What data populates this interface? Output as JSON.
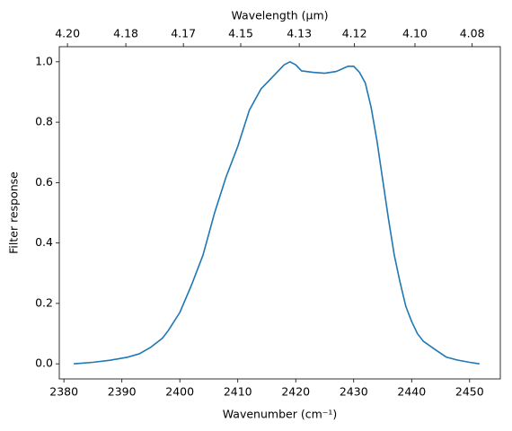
{
  "chart_data": {
    "type": "line",
    "x_label": "Wavenumber (cm⁻¹)",
    "y_label": "Filter response",
    "x2_label": "Wavelength (μm)",
    "x": [
      2381.7,
      2385,
      2388,
      2391,
      2393,
      2395,
      2397,
      2398,
      2400,
      2402,
      2404,
      2406,
      2408,
      2410,
      2412,
      2414,
      2416,
      2418,
      2419,
      2420,
      2421,
      2423,
      2425,
      2427,
      2429,
      2430,
      2431,
      2432,
      2433,
      2434,
      2435,
      2436,
      2437,
      2438,
      2439,
      2440,
      2441,
      2442,
      2444,
      2445,
      2446,
      2448,
      2450,
      2451.7
    ],
    "series": [
      {
        "color": "#1f77b4",
        "values": [
          0.0,
          0.005,
          0.012,
          0.022,
          0.033,
          0.055,
          0.085,
          0.11,
          0.17,
          0.26,
          0.36,
          0.5,
          0.62,
          0.72,
          0.84,
          0.91,
          0.95,
          0.99,
          1.0,
          0.99,
          0.97,
          0.965,
          0.962,
          0.968,
          0.985,
          0.985,
          0.965,
          0.93,
          0.85,
          0.74,
          0.61,
          0.48,
          0.36,
          0.27,
          0.19,
          0.14,
          0.1,
          0.075,
          0.048,
          0.035,
          0.022,
          0.012,
          0.005,
          0.0
        ]
      }
    ],
    "xlim": [
      2379.2,
      2455.3
    ],
    "ylim": [
      -0.05,
      1.05
    ],
    "xticks": [
      2380,
      2390,
      2400,
      2410,
      2420,
      2430,
      2440,
      2450
    ],
    "yticks": [
      {
        "value": 0.0,
        "label": "0.0"
      },
      0.2,
      0.4,
      0.6,
      0.8,
      {
        "value": 1.0,
        "label": "1.0"
      }
    ],
    "x2ticks": [
      {
        "value": 4.2006,
        "label": "4.20"
      },
      {
        "value": 4.1829,
        "label": "4.18"
      },
      {
        "value": 4.1656,
        "label": "4.17"
      },
      {
        "value": 4.1485,
        "label": "4.15"
      },
      {
        "value": 4.1312,
        "label": "4.13"
      },
      {
        "value": 4.115,
        "label": "4.12"
      },
      {
        "value": 4.0974,
        "label": "4.10"
      },
      {
        "value": 4.0809,
        "label": "4.08"
      }
    ]
  }
}
